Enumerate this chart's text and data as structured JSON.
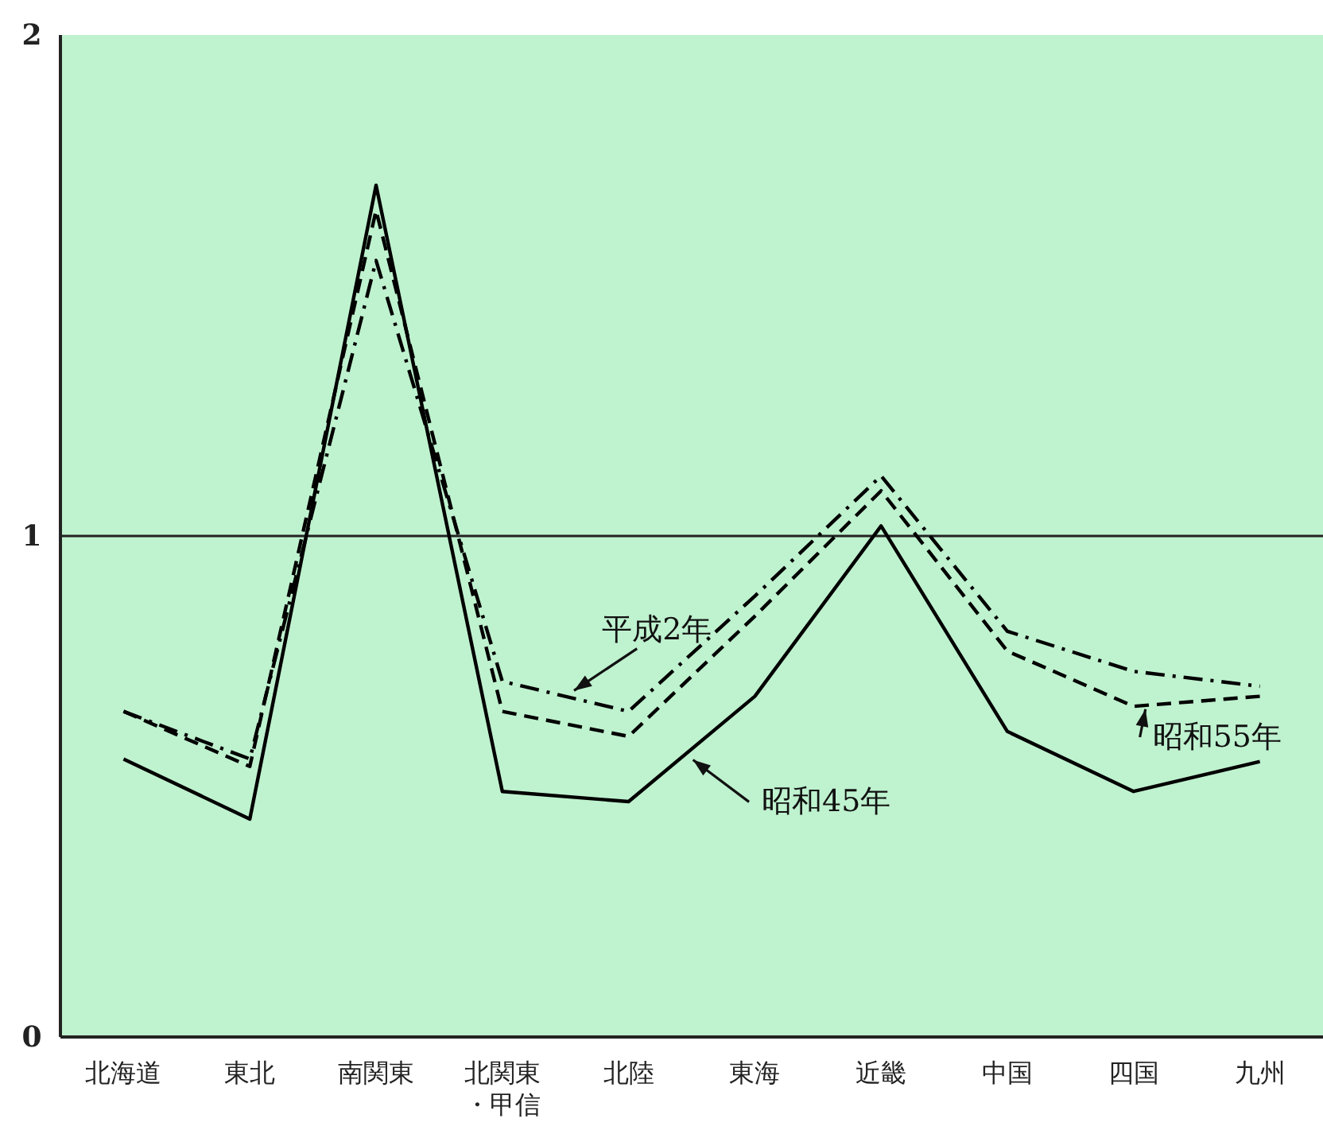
{
  "chart_data": {
    "type": "line",
    "categories": [
      "北海道",
      "東北",
      "南関東",
      "北関東・甲信",
      "北陸",
      "東海",
      "近畿",
      "中国",
      "四国",
      "九州"
    ],
    "series": [
      {
        "name": "昭和45年",
        "color": "#000000",
        "line_style": "solid",
        "values": [
          0.555,
          0.435,
          1.7,
          0.49,
          0.47,
          0.68,
          1.02,
          0.61,
          0.49,
          0.55
        ]
      },
      {
        "name": "昭和55年",
        "color": "#000000",
        "line_style": "dashed",
        "values": [
          0.65,
          0.54,
          1.65,
          0.65,
          0.6,
          0.84,
          1.09,
          0.77,
          0.66,
          0.68
        ]
      },
      {
        "name": "平成2年",
        "color": "#000000",
        "line_style": "dashdot",
        "values": [
          0.65,
          0.555,
          1.55,
          0.71,
          0.65,
          0.88,
          1.12,
          0.81,
          0.73,
          0.7
        ]
      }
    ],
    "ylim": [
      0,
      2
    ],
    "yticks": [
      0,
      1,
      2
    ],
    "ref_lines": [
      {
        "axis": "y",
        "value": 1
      }
    ],
    "grid": false,
    "legend": false,
    "marker": "none"
  }
}
